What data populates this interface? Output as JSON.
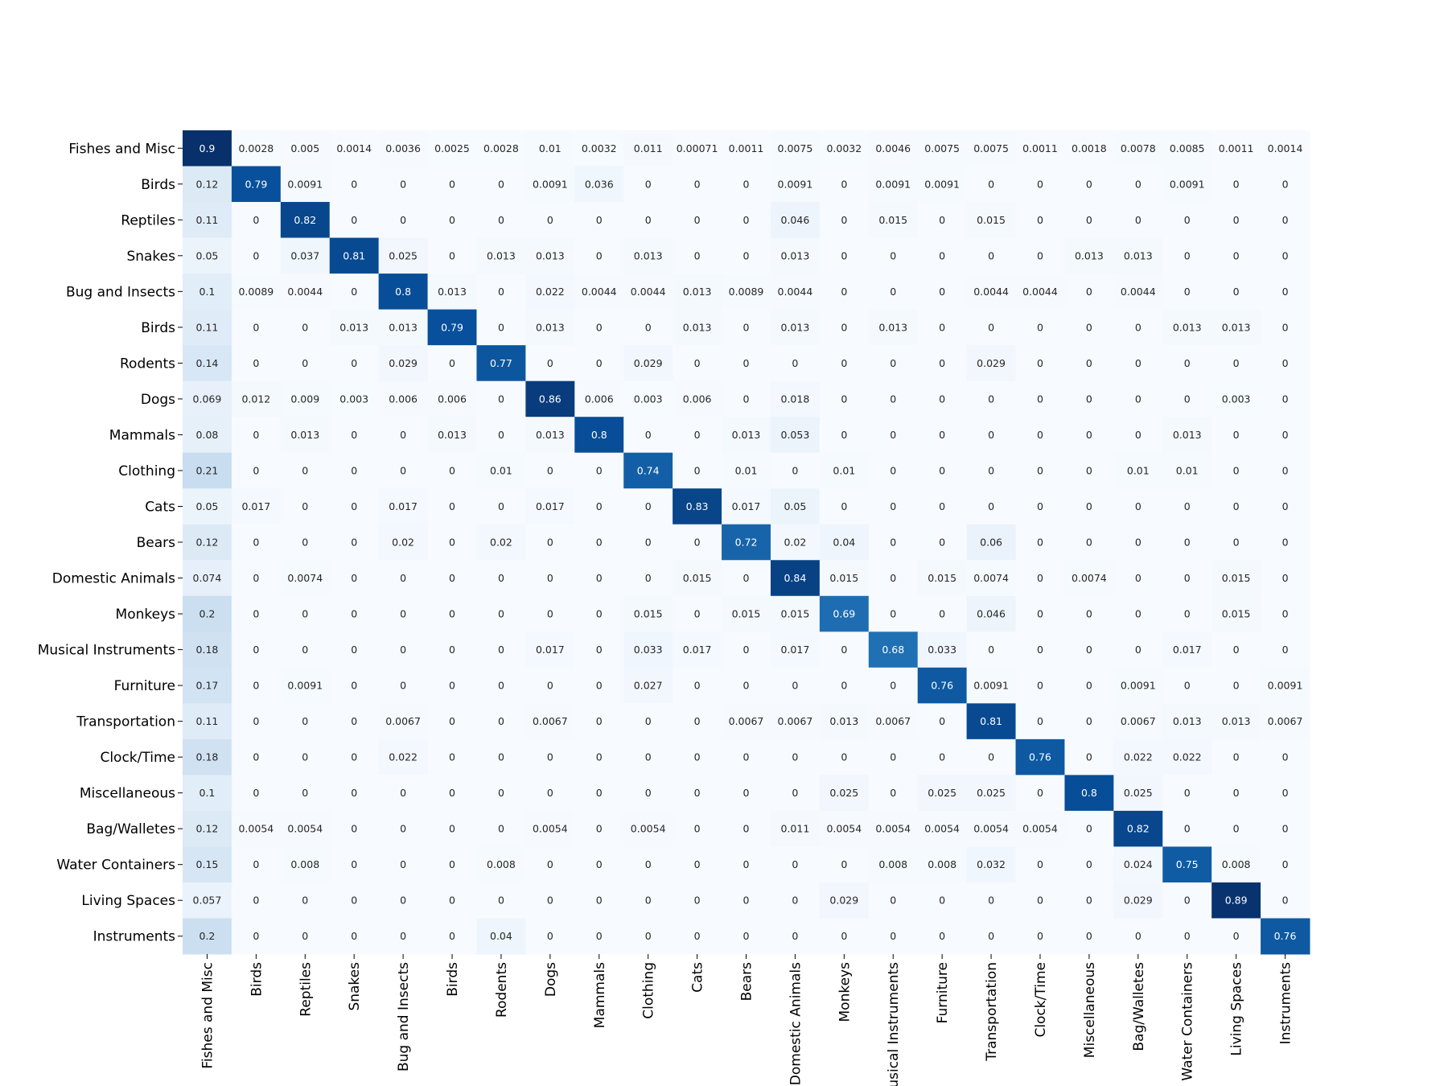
{
  "chart_data": {
    "type": "heatmap",
    "title": "",
    "xlabel": "",
    "ylabel": "",
    "colormap": "Blues",
    "colors": {
      "low": "#f7fbff",
      "high": "#08306b",
      "text_dark": "#262626",
      "text_light": "#ffffff"
    },
    "value_range": [
      0,
      0.9
    ],
    "row_labels": [
      "Fishes and Misc",
      "Birds",
      "Reptiles",
      "Snakes",
      "Bug and Insects",
      "Birds",
      "Rodents",
      "Dogs",
      "Mammals",
      "Clothing",
      "Cats",
      "Bears",
      "Domestic Animals",
      "Monkeys",
      "Musical Instruments",
      "Furniture",
      "Transportation",
      "Clock/Time",
      "Miscellaneous",
      "Bag/Walletes",
      "Water Containers",
      "Living Spaces",
      "Instruments"
    ],
    "col_labels": [
      "Fishes and Misc",
      "Birds",
      "Reptiles",
      "Snakes",
      "Bug and Insects",
      "Birds",
      "Rodents",
      "Dogs",
      "Mammals",
      "Clothing",
      "Cats",
      "Bears",
      "Domestic Animals",
      "Monkeys",
      "Musical Instruments",
      "Furniture",
      "Transportation",
      "Clock/Time",
      "Miscellaneous",
      "Bag/Walletes",
      "Water Containers",
      "Living Spaces",
      "Instruments"
    ],
    "values": [
      [
        "0.9",
        "0.0028",
        "0.005",
        "0.0014",
        "0.0036",
        "0.0025",
        "0.0028",
        "0.01",
        "0.0032",
        "0.011",
        "0.00071",
        "0.0011",
        "0.0075",
        "0.0032",
        "0.0046",
        "0.0075",
        "0.0075",
        "0.0011",
        "0.0018",
        "0.0078",
        "0.0085",
        "0.0011",
        "0.0014"
      ],
      [
        "0.12",
        "0.79",
        "0.0091",
        "0",
        "0",
        "0",
        "0",
        "0.0091",
        "0.036",
        "0",
        "0",
        "0",
        "0.0091",
        "0",
        "0.0091",
        "0.0091",
        "0",
        "0",
        "0",
        "0",
        "0.0091",
        "0",
        "0"
      ],
      [
        "0.11",
        "0",
        "0.82",
        "0",
        "0",
        "0",
        "0",
        "0",
        "0",
        "0",
        "0",
        "0",
        "0.046",
        "0",
        "0.015",
        "0",
        "0.015",
        "0",
        "0",
        "0",
        "0",
        "0",
        "0"
      ],
      [
        "0.05",
        "0",
        "0.037",
        "0.81",
        "0.025",
        "0",
        "0.013",
        "0.013",
        "0",
        "0.013",
        "0",
        "0",
        "0.013",
        "0",
        "0",
        "0",
        "0",
        "0",
        "0.013",
        "0.013",
        "0",
        "0",
        "0"
      ],
      [
        "0.1",
        "0.0089",
        "0.0044",
        "0",
        "0.8",
        "0.013",
        "0",
        "0.022",
        "0.0044",
        "0.0044",
        "0.013",
        "0.0089",
        "0.0044",
        "0",
        "0",
        "0",
        "0.0044",
        "0.0044",
        "0",
        "0.0044",
        "0",
        "0",
        "0"
      ],
      [
        "0.11",
        "0",
        "0",
        "0.013",
        "0.013",
        "0.79",
        "0",
        "0.013",
        "0",
        "0",
        "0.013",
        "0",
        "0.013",
        "0",
        "0.013",
        "0",
        "0",
        "0",
        "0",
        "0",
        "0.013",
        "0.013",
        "0"
      ],
      [
        "0.14",
        "0",
        "0",
        "0",
        "0.029",
        "0",
        "0.77",
        "0",
        "0",
        "0.029",
        "0",
        "0",
        "0",
        "0",
        "0",
        "0",
        "0.029",
        "0",
        "0",
        "0",
        "0",
        "0",
        "0"
      ],
      [
        "0.069",
        "0.012",
        "0.009",
        "0.003",
        "0.006",
        "0.006",
        "0",
        "0.86",
        "0.006",
        "0.003",
        "0.006",
        "0",
        "0.018",
        "0",
        "0",
        "0",
        "0",
        "0",
        "0",
        "0",
        "0",
        "0.003",
        "0"
      ],
      [
        "0.08",
        "0",
        "0.013",
        "0",
        "0",
        "0.013",
        "0",
        "0.013",
        "0.8",
        "0",
        "0",
        "0.013",
        "0.053",
        "0",
        "0",
        "0",
        "0",
        "0",
        "0",
        "0",
        "0.013",
        "0",
        "0"
      ],
      [
        "0.21",
        "0",
        "0",
        "0",
        "0",
        "0",
        "0.01",
        "0",
        "0",
        "0.74",
        "0",
        "0.01",
        "0",
        "0.01",
        "0",
        "0",
        "0",
        "0",
        "0",
        "0.01",
        "0.01",
        "0",
        "0"
      ],
      [
        "0.05",
        "0.017",
        "0",
        "0",
        "0.017",
        "0",
        "0",
        "0.017",
        "0",
        "0",
        "0.83",
        "0.017",
        "0.05",
        "0",
        "0",
        "0",
        "0",
        "0",
        "0",
        "0",
        "0",
        "0",
        "0"
      ],
      [
        "0.12",
        "0",
        "0",
        "0",
        "0.02",
        "0",
        "0.02",
        "0",
        "0",
        "0",
        "0",
        "0.72",
        "0.02",
        "0.04",
        "0",
        "0",
        "0.06",
        "0",
        "0",
        "0",
        "0",
        "0",
        "0"
      ],
      [
        "0.074",
        "0",
        "0.0074",
        "0",
        "0",
        "0",
        "0",
        "0",
        "0",
        "0",
        "0.015",
        "0",
        "0.84",
        "0.015",
        "0",
        "0.015",
        "0.0074",
        "0",
        "0.0074",
        "0",
        "0",
        "0.015",
        "0"
      ],
      [
        "0.2",
        "0",
        "0",
        "0",
        "0",
        "0",
        "0",
        "0",
        "0",
        "0.015",
        "0",
        "0.015",
        "0.015",
        "0.69",
        "0",
        "0",
        "0.046",
        "0",
        "0",
        "0",
        "0",
        "0.015",
        "0"
      ],
      [
        "0.18",
        "0",
        "0",
        "0",
        "0",
        "0",
        "0",
        "0.017",
        "0",
        "0.033",
        "0.017",
        "0",
        "0.017",
        "0",
        "0.68",
        "0.033",
        "0",
        "0",
        "0",
        "0",
        "0.017",
        "0",
        "0"
      ],
      [
        "0.17",
        "0",
        "0.0091",
        "0",
        "0",
        "0",
        "0",
        "0",
        "0",
        "0.027",
        "0",
        "0",
        "0",
        "0",
        "0",
        "0.76",
        "0.0091",
        "0",
        "0",
        "0.0091",
        "0",
        "0",
        "0.0091"
      ],
      [
        "0.11",
        "0",
        "0",
        "0",
        "0.0067",
        "0",
        "0",
        "0.0067",
        "0",
        "0",
        "0",
        "0.0067",
        "0.0067",
        "0.013",
        "0.0067",
        "0",
        "0.81",
        "0",
        "0",
        "0.0067",
        "0.013",
        "0.013",
        "0.0067"
      ],
      [
        "0.18",
        "0",
        "0",
        "0",
        "0.022",
        "0",
        "0",
        "0",
        "0",
        "0",
        "0",
        "0",
        "0",
        "0",
        "0",
        "0",
        "0",
        "0.76",
        "0",
        "0.022",
        "0.022",
        "0",
        "0"
      ],
      [
        "0.1",
        "0",
        "0",
        "0",
        "0",
        "0",
        "0",
        "0",
        "0",
        "0",
        "0",
        "0",
        "0",
        "0.025",
        "0",
        "0.025",
        "0.025",
        "0",
        "0.8",
        "0.025",
        "0",
        "0",
        "0"
      ],
      [
        "0.12",
        "0.0054",
        "0.0054",
        "0",
        "0",
        "0",
        "0",
        "0.0054",
        "0",
        "0.0054",
        "0",
        "0",
        "0.011",
        "0.0054",
        "0.0054",
        "0.0054",
        "0.0054",
        "0.0054",
        "0",
        "0.82",
        "0",
        "0",
        "0"
      ],
      [
        "0.15",
        "0",
        "0.008",
        "0",
        "0",
        "0",
        "0.008",
        "0",
        "0",
        "0",
        "0",
        "0",
        "0",
        "0",
        "0.008",
        "0.008",
        "0.032",
        "0",
        "0",
        "0.024",
        "0.75",
        "0.008",
        "0"
      ],
      [
        "0.057",
        "0",
        "0",
        "0",
        "0",
        "0",
        "0",
        "0",
        "0",
        "0",
        "0",
        "0",
        "0",
        "0.029",
        "0",
        "0",
        "0",
        "0",
        "0",
        "0.029",
        "0",
        "0.89",
        "0"
      ],
      [
        "0.2",
        "0",
        "0",
        "0",
        "0",
        "0",
        "0.04",
        "0",
        "0",
        "0",
        "0",
        "0",
        "0",
        "0",
        "0",
        "0",
        "0",
        "0",
        "0",
        "0",
        "0",
        "0",
        "0.76"
      ]
    ]
  }
}
